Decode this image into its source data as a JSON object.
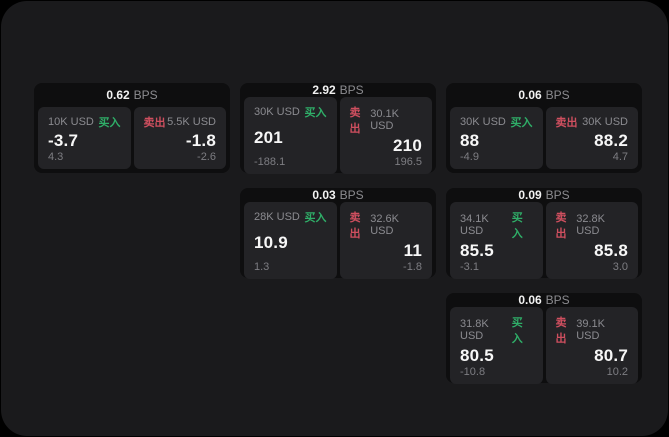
{
  "labels": {
    "buy": "买入",
    "sell": "卖出",
    "bps_unit": "BPS"
  },
  "colors": {
    "buy_green": "#2fae68",
    "sell_red": "#cf4f5f",
    "surface": "#1a1a1c",
    "card_bg": "#0e0e0f",
    "pane_bg": "#232326"
  },
  "cards": [
    {
      "row": 1,
      "col": 1,
      "bps": "0.62",
      "buy": {
        "size": "10K USD",
        "price": "-3.7",
        "delta": "4.3"
      },
      "sell": {
        "size": "5.5K USD",
        "price": "-1.8",
        "delta": "-2.6"
      }
    },
    {
      "row": 1,
      "col": 2,
      "bps": "2.92",
      "buy": {
        "size": "30K USD",
        "price": "201",
        "delta": "-188.1"
      },
      "sell": {
        "size": "30.1K USD",
        "price": "210",
        "delta": "196.5"
      }
    },
    {
      "row": 1,
      "col": 3,
      "bps": "0.06",
      "buy": {
        "size": "30K USD",
        "price": "88",
        "delta": "-4.9"
      },
      "sell": {
        "size": "30K USD",
        "price": "88.2",
        "delta": "4.7"
      }
    },
    {
      "row": 2,
      "col": 2,
      "bps": "0.03",
      "buy": {
        "size": "28K USD",
        "price": "10.9",
        "delta": "1.3"
      },
      "sell": {
        "size": "32.6K USD",
        "price": "11",
        "delta": "-1.8"
      }
    },
    {
      "row": 2,
      "col": 3,
      "bps": "0.09",
      "buy": {
        "size": "34.1K USD",
        "price": "85.5",
        "delta": "-3.1"
      },
      "sell": {
        "size": "32.8K USD",
        "price": "85.8",
        "delta": "3.0"
      }
    },
    {
      "row": 3,
      "col": 3,
      "bps": "0.06",
      "buy": {
        "size": "31.8K USD",
        "price": "80.5",
        "delta": "-10.8"
      },
      "sell": {
        "size": "39.1K USD",
        "price": "80.7",
        "delta": "10.2"
      }
    }
  ]
}
